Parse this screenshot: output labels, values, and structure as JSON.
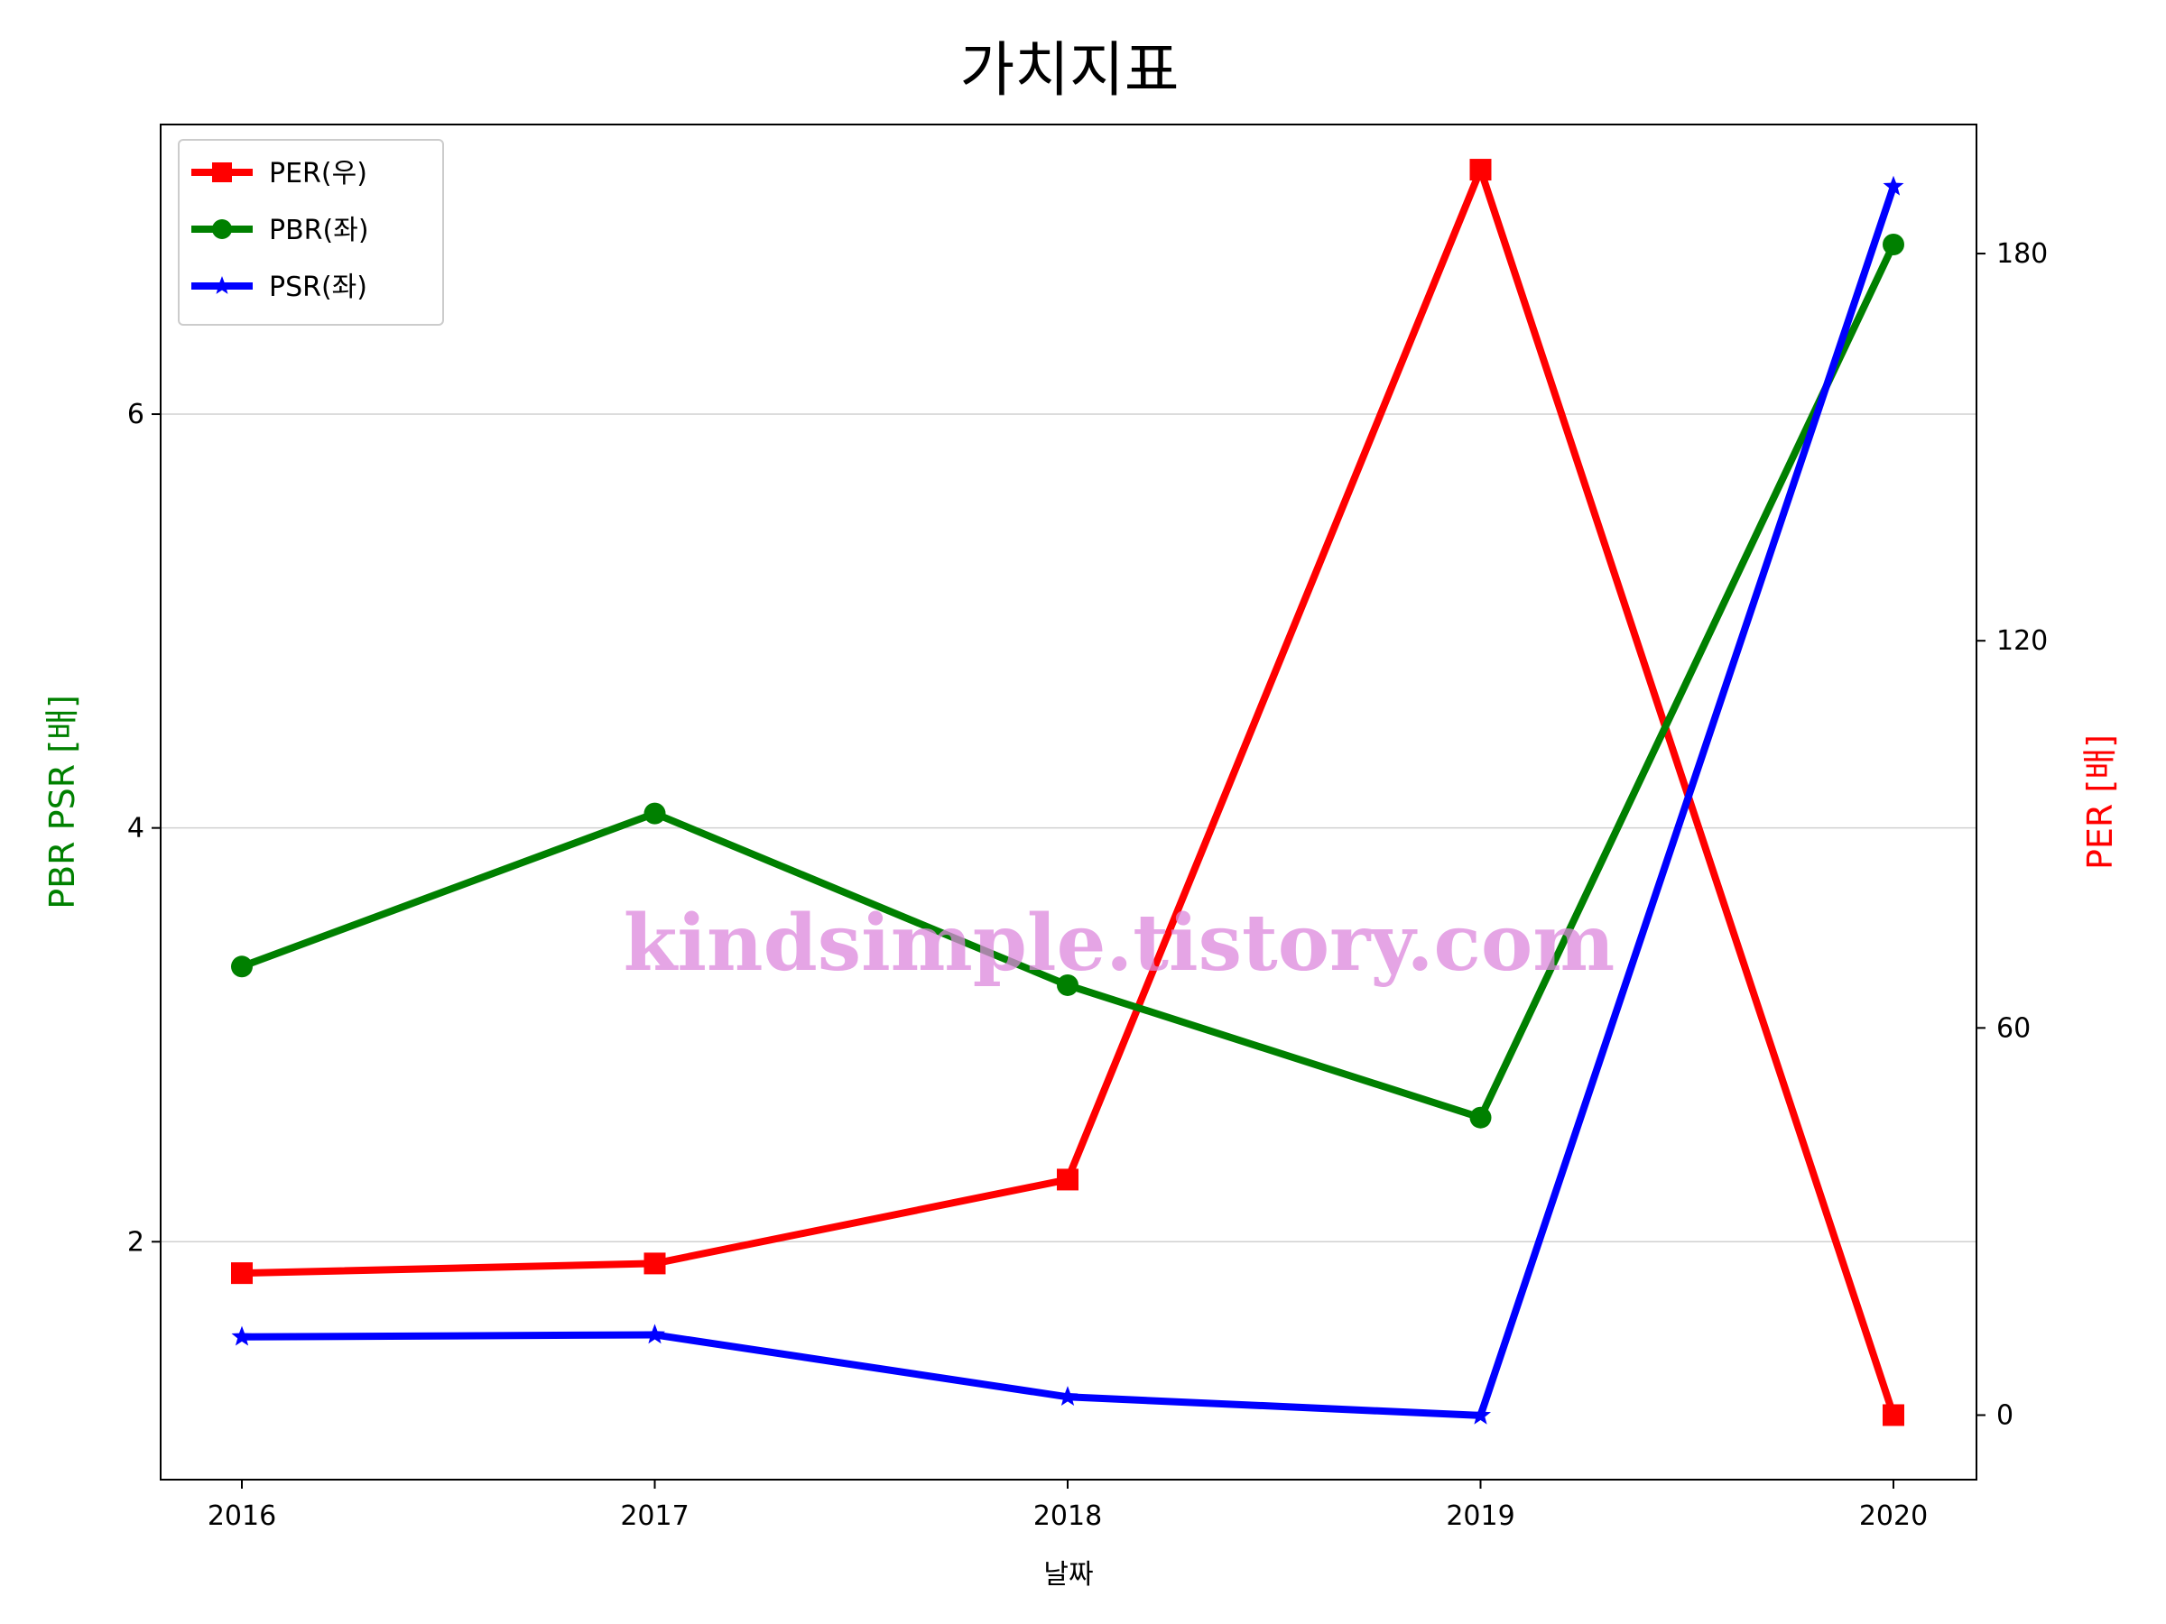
{
  "chart_data": {
    "type": "line",
    "title": "가치지표",
    "xlabel": "날짜",
    "ylabel_left": "PBR PSR [배]",
    "ylabel_right": "PER [배]",
    "categories": [
      "2016",
      "2017",
      "2018",
      "2019",
      "2020"
    ],
    "ylim_left": [
      0.85,
      7.4
    ],
    "ylim_right": [
      -10,
      200
    ],
    "yticks_left": [
      2,
      4,
      6
    ],
    "yticks_right": [
      0,
      60,
      120,
      180
    ],
    "grid": "horizontal, left axis",
    "legend_position": "top-left",
    "series": [
      {
        "name": "PER(우)",
        "axis": "right",
        "color": "#ff0000",
        "marker": "square",
        "values": [
          22,
          23.5,
          36.5,
          193,
          0
        ]
      },
      {
        "name": "PBR(좌)",
        "axis": "left",
        "color": "#008000",
        "marker": "circle",
        "values": [
          3.33,
          4.07,
          3.24,
          2.6,
          6.82
        ]
      },
      {
        "name": "PSR(좌)",
        "axis": "left",
        "color": "#0000ff",
        "marker": "star",
        "values": [
          1.54,
          1.55,
          1.25,
          1.16,
          7.1
        ]
      }
    ],
    "watermark": "kindsimple.tistory.com"
  }
}
